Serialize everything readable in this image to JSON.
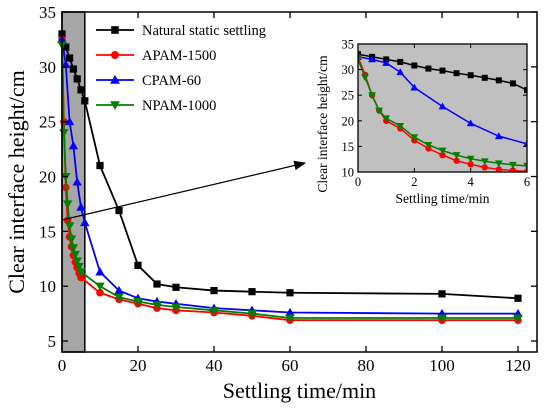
{
  "chart_data": [
    {
      "type": "line",
      "xlabel": "Settling time/min",
      "ylabel": "Clear interface height/cm",
      "xlim": [
        0,
        125
      ],
      "ylim": [
        4,
        35
      ],
      "xticks": [
        0,
        20,
        40,
        60,
        80,
        100,
        120
      ],
      "yticks": [
        5,
        10,
        15,
        20,
        25,
        30,
        35
      ],
      "grid": false,
      "legend_position": "top-center",
      "shaded_region": {
        "x_from": 0,
        "x_to": 6,
        "color": "#a6a6a6"
      },
      "series": [
        {
          "name": "Natural static settling",
          "color": "#000000",
          "marker": "square",
          "x": [
            0,
            1,
            2,
            3,
            4,
            5,
            6,
            10,
            15,
            20,
            25,
            30,
            40,
            50,
            60,
            100,
            120
          ],
          "y": [
            33.0,
            31.8,
            30.8,
            29.8,
            28.9,
            27.9,
            26.9,
            21.0,
            16.9,
            11.9,
            10.2,
            9.9,
            9.6,
            9.5,
            9.4,
            9.3,
            8.9
          ]
        },
        {
          "name": "APAM-1500",
          "color": "#ff0000",
          "marker": "circle",
          "x": [
            0,
            0.5,
            1,
            1.5,
            2,
            2.5,
            3,
            3.5,
            4,
            4.5,
            5,
            10,
            15,
            20,
            25,
            30,
            40,
            50,
            60,
            100,
            120
          ],
          "y": [
            32.5,
            25.0,
            19.0,
            16.0,
            14.5,
            13.6,
            12.8,
            12.2,
            11.7,
            11.2,
            10.8,
            9.4,
            8.8,
            8.4,
            8.0,
            7.8,
            7.6,
            7.3,
            6.9,
            6.9,
            6.9
          ]
        },
        {
          "name": "CPAM-60",
          "color": "#0000ff",
          "marker": "triangle-up",
          "x": [
            0,
            1,
            2,
            3,
            4,
            5,
            6,
            10,
            15,
            20,
            25,
            30,
            40,
            50,
            60,
            100,
            120
          ],
          "y": [
            32.5,
            30.2,
            25.0,
            22.8,
            19.5,
            17.2,
            15.8,
            11.3,
            9.6,
            8.9,
            8.6,
            8.4,
            8.0,
            7.8,
            7.6,
            7.5,
            7.5
          ]
        },
        {
          "name": "NPAM-1000",
          "color": "#008000",
          "marker": "triangle-down",
          "x": [
            0,
            0.5,
            1,
            1.5,
            2,
            2.5,
            3,
            3.5,
            4,
            4.5,
            5,
            10,
            15,
            20,
            25,
            30,
            40,
            50,
            60,
            100,
            120
          ],
          "y": [
            32.0,
            24.0,
            20.0,
            17.5,
            15.5,
            14.3,
            13.5,
            12.9,
            12.3,
            11.8,
            11.3,
            10.0,
            9.0,
            8.6,
            8.3,
            8.1,
            7.8,
            7.5,
            7.1,
            7.1,
            7.1
          ]
        }
      ]
    },
    {
      "type": "line",
      "inset": true,
      "xlabel": "Settling time/min",
      "ylabel": "Clear interface height/cm",
      "xlim": [
        0,
        6
      ],
      "ylim": [
        10,
        35
      ],
      "xticks": [
        0,
        2,
        4,
        6
      ],
      "yticks": [
        10,
        15,
        20,
        25,
        30,
        35
      ],
      "background": "#c0c0c0",
      "series": [
        {
          "name": "Natural static settling",
          "color": "#000000",
          "marker": "square",
          "x": [
            0,
            0.5,
            1,
            1.5,
            2,
            2.5,
            3,
            3.5,
            4,
            4.5,
            5,
            5.5,
            6
          ],
          "y": [
            33.0,
            32.5,
            32.0,
            31.5,
            30.8,
            30.2,
            29.8,
            29.3,
            28.9,
            28.4,
            27.9,
            27.3,
            26.0
          ]
        },
        {
          "name": "APAM-1500",
          "color": "#ff0000",
          "marker": "circle",
          "x": [
            0,
            0.25,
            0.5,
            0.75,
            1,
            1.5,
            2,
            2.5,
            3,
            3.5,
            4,
            4.5,
            5,
            5.5,
            6
          ],
          "y": [
            32.5,
            29.0,
            25.0,
            22.0,
            20.0,
            18.5,
            16.2,
            14.6,
            13.3,
            12.2,
            11.5,
            10.9,
            10.5,
            10.3,
            10.1
          ]
        },
        {
          "name": "CPAM-60",
          "color": "#0000ff",
          "marker": "triangle-up",
          "x": [
            0,
            0.5,
            1,
            1.5,
            2,
            3,
            4,
            5,
            6
          ],
          "y": [
            32.5,
            32.0,
            31.3,
            29.5,
            26.5,
            22.8,
            19.5,
            17.0,
            15.5
          ]
        },
        {
          "name": "NPAM-1000",
          "color": "#008000",
          "marker": "triangle-down",
          "x": [
            0,
            0.25,
            0.5,
            0.75,
            1,
            1.5,
            2,
            2.5,
            3,
            3.5,
            4,
            4.5,
            5,
            5.5,
            6
          ],
          "y": [
            32.0,
            28.5,
            25.0,
            22.0,
            20.5,
            19.0,
            16.8,
            15.3,
            14.2,
            13.3,
            12.6,
            12.1,
            11.7,
            11.4,
            11.2
          ]
        }
      ]
    }
  ]
}
